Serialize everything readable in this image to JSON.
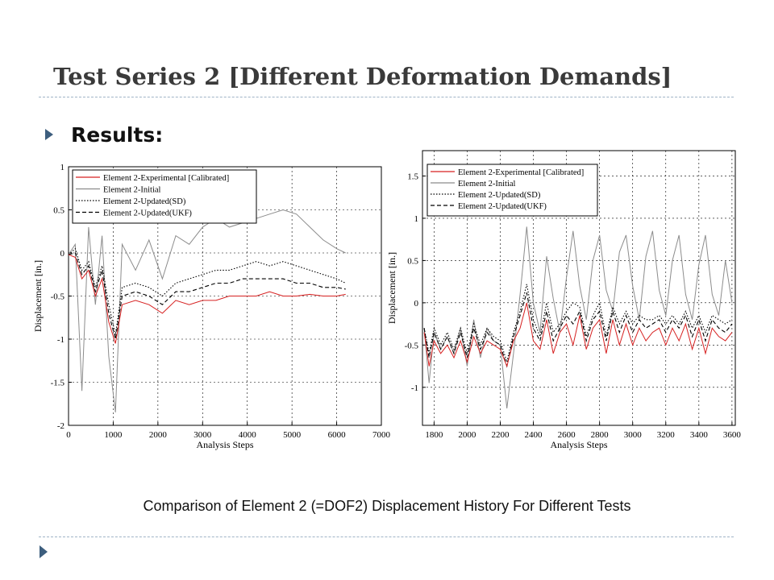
{
  "slide": {
    "title": "Test Series 2 [Different Deformation Demands]",
    "bullet": "Results:",
    "caption": "Comparison of Element 2 (=DOF2) Displacement History For Different Tests"
  },
  "chart_data": [
    {
      "type": "line",
      "title": "",
      "xlabel": "Analysis Steps",
      "ylabel": "Displacement [in.]",
      "xlim": [
        0,
        7000
      ],
      "ylim": [
        -2,
        1
      ],
      "xticks": [
        "0",
        "1000",
        "2000",
        "3000",
        "4000",
        "5000",
        "6000",
        "7000"
      ],
      "yticks": [
        "-2",
        "-1.5",
        "-1",
        "-0.5",
        "0",
        "0.5",
        "1"
      ],
      "grid": true,
      "legend_position": "top-left",
      "series": [
        {
          "name": "Element 2-Experimental [Calibrated]",
          "color": "#d62020",
          "style": "solid",
          "x": [
            0,
            150,
            300,
            450,
            600,
            750,
            900,
            1050,
            1200,
            1500,
            1800,
            2100,
            2400,
            2700,
            3000,
            3300,
            3600,
            3900,
            4200,
            4500,
            4800,
            5100,
            5400,
            5700,
            6000,
            6200
          ],
          "y": [
            -0.02,
            -0.05,
            -0.3,
            -0.2,
            -0.5,
            -0.3,
            -0.8,
            -1.05,
            -0.6,
            -0.55,
            -0.6,
            -0.7,
            -0.55,
            -0.6,
            -0.55,
            -0.55,
            -0.5,
            -0.5,
            -0.5,
            -0.45,
            -0.5,
            -0.5,
            -0.48,
            -0.5,
            -0.5,
            -0.48
          ]
        },
        {
          "name": "Element 2-Initial",
          "color": "#8c8c8c",
          "style": "solid",
          "x": [
            0,
            150,
            300,
            450,
            600,
            750,
            900,
            1050,
            1200,
            1500,
            1800,
            2100,
            2400,
            2700,
            3000,
            3300,
            3600,
            3900,
            4200,
            4500,
            4800,
            5100,
            5400,
            5700,
            6000,
            6200
          ],
          "y": [
            -0.02,
            0.1,
            -1.6,
            0.3,
            -0.6,
            0.2,
            -1.2,
            -1.85,
            0.1,
            -0.2,
            0.15,
            -0.3,
            0.2,
            0.1,
            0.3,
            0.4,
            0.3,
            0.35,
            0.4,
            0.45,
            0.5,
            0.45,
            0.3,
            0.15,
            0.05,
            0.0
          ]
        },
        {
          "name": "Element 2-Updated(SD)",
          "color": "#000000",
          "style": "dotted",
          "x": [
            0,
            150,
            300,
            450,
            600,
            750,
            900,
            1050,
            1200,
            1500,
            1800,
            2100,
            2400,
            2700,
            3000,
            3300,
            3600,
            3900,
            4200,
            4500,
            4800,
            5100,
            5400,
            5700,
            6000,
            6200
          ],
          "y": [
            -0.02,
            0.05,
            -0.2,
            -0.1,
            -0.4,
            -0.15,
            -0.6,
            -0.95,
            -0.4,
            -0.35,
            -0.4,
            -0.5,
            -0.35,
            -0.3,
            -0.25,
            -0.2,
            -0.2,
            -0.15,
            -0.1,
            -0.15,
            -0.1,
            -0.15,
            -0.2,
            -0.25,
            -0.3,
            -0.35
          ]
        },
        {
          "name": "Element 2-Updated(UKF)",
          "color": "#000000",
          "style": "dashed",
          "x": [
            0,
            150,
            300,
            450,
            600,
            750,
            900,
            1050,
            1200,
            1500,
            1800,
            2100,
            2400,
            2700,
            3000,
            3300,
            3600,
            3900,
            4200,
            4500,
            4800,
            5100,
            5400,
            5700,
            6000,
            6200
          ],
          "y": [
            -0.02,
            0.0,
            -0.25,
            -0.15,
            -0.45,
            -0.2,
            -0.7,
            -1.0,
            -0.5,
            -0.45,
            -0.5,
            -0.6,
            -0.45,
            -0.45,
            -0.4,
            -0.35,
            -0.35,
            -0.3,
            -0.3,
            -0.3,
            -0.3,
            -0.35,
            -0.35,
            -0.4,
            -0.4,
            -0.42
          ]
        }
      ]
    },
    {
      "type": "line",
      "title": "",
      "xlabel": "Analysis Steps",
      "ylabel": "Displacement [in.]",
      "xlim": [
        1730,
        3620
      ],
      "ylim": [
        -1.45,
        1.8
      ],
      "xticks": [
        "1800",
        "2000",
        "2200",
        "2400",
        "2600",
        "2800",
        "3000",
        "3200",
        "3400",
        "3600"
      ],
      "yticks": [
        "-1",
        "-0.5",
        "0",
        "0.5",
        "1",
        "1.5"
      ],
      "grid": true,
      "legend_position": "top-left",
      "series": [
        {
          "name": "Element 2-Experimental [Calibrated]",
          "color": "#d62020",
          "style": "solid",
          "x": [
            1740,
            1770,
            1800,
            1840,
            1880,
            1920,
            1960,
            2000,
            2040,
            2080,
            2120,
            2160,
            2200,
            2240,
            2280,
            2320,
            2360,
            2400,
            2440,
            2480,
            2520,
            2560,
            2600,
            2640,
            2680,
            2720,
            2760,
            2800,
            2840,
            2880,
            2920,
            2960,
            3000,
            3040,
            3080,
            3120,
            3160,
            3200,
            3240,
            3280,
            3320,
            3360,
            3400,
            3440,
            3480,
            3520,
            3560,
            3600
          ],
          "y": [
            -0.35,
            -0.75,
            -0.45,
            -0.6,
            -0.5,
            -0.65,
            -0.45,
            -0.7,
            -0.4,
            -0.6,
            -0.45,
            -0.5,
            -0.55,
            -0.75,
            -0.45,
            -0.3,
            0.0,
            -0.45,
            -0.55,
            -0.2,
            -0.6,
            -0.35,
            -0.25,
            -0.5,
            -0.15,
            -0.55,
            -0.3,
            -0.2,
            -0.6,
            -0.2,
            -0.5,
            -0.25,
            -0.5,
            -0.3,
            -0.45,
            -0.35,
            -0.3,
            -0.5,
            -0.3,
            -0.45,
            -0.25,
            -0.55,
            -0.3,
            -0.6,
            -0.3,
            -0.4,
            -0.45,
            -0.35
          ]
        },
        {
          "name": "Element 2-Initial",
          "color": "#8c8c8c",
          "style": "solid",
          "x": [
            1740,
            1770,
            1800,
            1840,
            1880,
            1920,
            1960,
            2000,
            2040,
            2080,
            2120,
            2160,
            2200,
            2240,
            2280,
            2320,
            2360,
            2400,
            2440,
            2480,
            2520,
            2560,
            2600,
            2640,
            2680,
            2720,
            2760,
            2800,
            2840,
            2880,
            2920,
            2960,
            3000,
            3040,
            3080,
            3120,
            3160,
            3200,
            3240,
            3280,
            3320,
            3360,
            3400,
            3440,
            3480,
            3520,
            3560,
            3600
          ],
          "y": [
            -0.3,
            -0.95,
            -0.35,
            -0.55,
            -0.4,
            -0.6,
            -0.3,
            -0.75,
            -0.2,
            -0.65,
            -0.3,
            -0.45,
            -0.5,
            -1.25,
            -0.6,
            0.1,
            0.9,
            0.0,
            -0.35,
            0.55,
            0.05,
            -0.35,
            0.3,
            0.85,
            0.2,
            -0.2,
            0.5,
            0.8,
            0.15,
            -0.1,
            0.6,
            0.8,
            0.2,
            -0.2,
            0.55,
            0.85,
            0.15,
            -0.15,
            0.5,
            0.8,
            0.1,
            -0.2,
            0.45,
            0.8,
            0.1,
            -0.15,
            0.5,
            0.0
          ]
        },
        {
          "name": "Element 2-Updated(SD)",
          "color": "#000000",
          "style": "dotted",
          "x": [
            1740,
            1770,
            1800,
            1840,
            1880,
            1920,
            1960,
            2000,
            2040,
            2080,
            2120,
            2160,
            2200,
            2240,
            2280,
            2320,
            2360,
            2400,
            2440,
            2480,
            2520,
            2560,
            2600,
            2640,
            2680,
            2720,
            2760,
            2800,
            2840,
            2880,
            2920,
            2960,
            3000,
            3040,
            3080,
            3120,
            3160,
            3200,
            3240,
            3280,
            3320,
            3360,
            3400,
            3440,
            3480,
            3520,
            3560,
            3600
          ],
          "y": [
            -0.3,
            -0.6,
            -0.3,
            -0.5,
            -0.35,
            -0.55,
            -0.3,
            -0.6,
            -0.25,
            -0.5,
            -0.3,
            -0.4,
            -0.45,
            -0.7,
            -0.35,
            -0.1,
            0.22,
            -0.2,
            -0.4,
            0.0,
            -0.35,
            -0.25,
            -0.1,
            0.0,
            -0.05,
            -0.4,
            -0.15,
            0.0,
            -0.4,
            -0.05,
            -0.25,
            -0.1,
            -0.25,
            -0.15,
            -0.2,
            -0.2,
            -0.15,
            -0.25,
            -0.15,
            -0.25,
            -0.1,
            -0.3,
            -0.15,
            -0.35,
            -0.15,
            -0.2,
            -0.25,
            -0.2
          ]
        },
        {
          "name": "Element 2-Updated(UKF)",
          "color": "#000000",
          "style": "dashed",
          "x": [
            1740,
            1770,
            1800,
            1840,
            1880,
            1920,
            1960,
            2000,
            2040,
            2080,
            2120,
            2160,
            2200,
            2240,
            2280,
            2320,
            2360,
            2400,
            2440,
            2480,
            2520,
            2560,
            2600,
            2640,
            2680,
            2720,
            2760,
            2800,
            2840,
            2880,
            2920,
            2960,
            3000,
            3040,
            3080,
            3120,
            3160,
            3200,
            3240,
            3280,
            3320,
            3360,
            3400,
            3440,
            3480,
            3520,
            3560,
            3600
          ],
          "y": [
            -0.3,
            -0.65,
            -0.35,
            -0.55,
            -0.4,
            -0.6,
            -0.35,
            -0.65,
            -0.3,
            -0.55,
            -0.35,
            -0.45,
            -0.5,
            -0.75,
            -0.4,
            -0.15,
            0.12,
            -0.3,
            -0.45,
            -0.1,
            -0.45,
            -0.3,
            -0.15,
            -0.25,
            -0.1,
            -0.45,
            -0.2,
            -0.1,
            -0.45,
            -0.1,
            -0.35,
            -0.15,
            -0.35,
            -0.2,
            -0.3,
            -0.25,
            -0.2,
            -0.35,
            -0.2,
            -0.3,
            -0.15,
            -0.4,
            -0.2,
            -0.45,
            -0.2,
            -0.3,
            -0.35,
            -0.25
          ]
        }
      ]
    }
  ]
}
